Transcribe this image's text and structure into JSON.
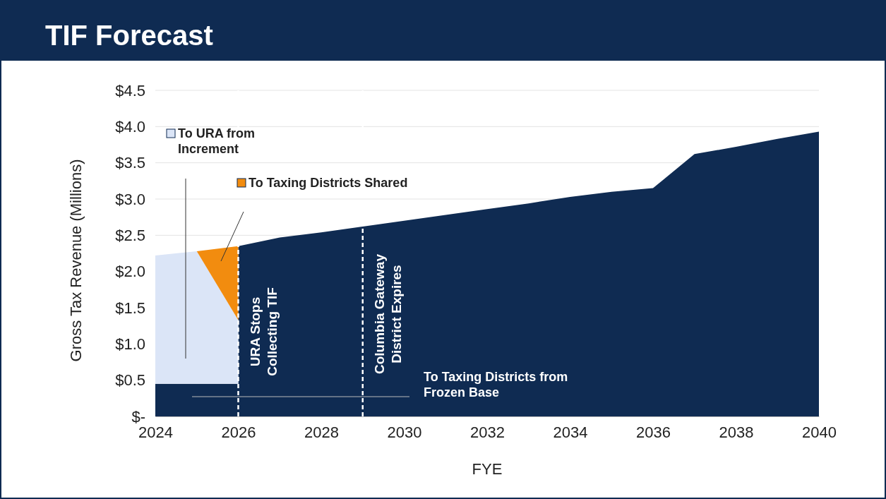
{
  "chart_data": {
    "type": "area",
    "title": "TIF Forecast",
    "xlabel": "FYE",
    "ylabel": "Gross Tax Revenue (Millions)",
    "stacked": true,
    "x": [
      2024,
      2025,
      2026,
      2026,
      2027,
      2028,
      2029,
      2030,
      2031,
      2032,
      2033,
      2034,
      2035,
      2036,
      2037,
      2038,
      2039,
      2040
    ],
    "series": [
      {
        "name": "To Taxing Districts from Frozen Base",
        "color": "#0f2b52",
        "values": [
          0.45,
          0.45,
          0.45,
          2.35,
          2.47,
          2.54,
          2.62,
          2.7,
          2.78,
          2.86,
          2.94,
          3.03,
          3.1,
          3.15,
          3.62,
          3.72,
          3.83,
          3.93
        ]
      },
      {
        "name": "To URA from Increment",
        "color": "#dbe5f7",
        "values": [
          1.77,
          1.83,
          0.88,
          0,
          0,
          0,
          0,
          0,
          0,
          0,
          0,
          0,
          0,
          0,
          0,
          0,
          0,
          0
        ]
      },
      {
        "name": "To Taxing Districts Shared",
        "color": "#f28c0f",
        "values": [
          0,
          0,
          1.02,
          0,
          0,
          0,
          0,
          0,
          0,
          0,
          0,
          0,
          0,
          0,
          0,
          0,
          0,
          0
        ]
      }
    ],
    "xlim": [
      2024,
      2040
    ],
    "xticks": [
      2024,
      2026,
      2028,
      2030,
      2032,
      2034,
      2036,
      2038,
      2040
    ],
    "ylim": [
      0,
      4.5
    ],
    "yticks": [
      {
        "value": 0,
        "label": "$-"
      },
      {
        "value": 0.5,
        "label": "$0.5"
      },
      {
        "value": 1,
        "label": "$1.0"
      },
      {
        "value": 1.5,
        "label": "$1.5"
      },
      {
        "value": 2,
        "label": "$2.0"
      },
      {
        "value": 2.5,
        "label": "$2.5"
      },
      {
        "value": 3,
        "label": "$3.0"
      },
      {
        "value": 3.5,
        "label": "$3.5"
      },
      {
        "value": 4,
        "label": "$4.0"
      },
      {
        "value": 4.5,
        "label": "$4.5"
      }
    ],
    "grid": "y",
    "legend": "top left",
    "ref_lines": [
      {
        "axis": "x",
        "value": 2026,
        "label": "URA Stops Collecting TIF",
        "color": "#ffffff",
        "line_style": "dashed"
      },
      {
        "axis": "x",
        "value": 2029,
        "label": "Columbia Gateway District Expires",
        "color": "#ffffff",
        "line_style": "dashed"
      }
    ]
  }
}
